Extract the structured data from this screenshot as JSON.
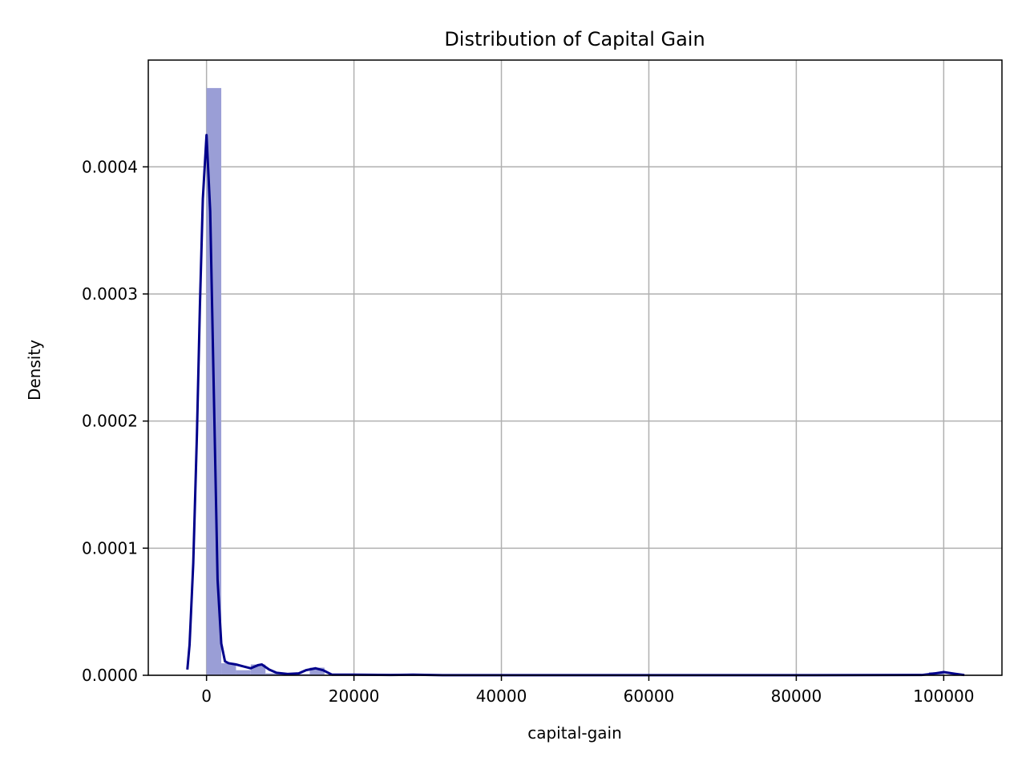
{
  "chart_data": {
    "type": "bar",
    "title": "Distribution of Capital Gain",
    "xlabel": "capital-gain",
    "ylabel": "Density",
    "xlim": [
      -7900,
      107900
    ],
    "ylim": [
      0,
      0.000484
    ],
    "x_ticks": [
      0,
      20000,
      40000,
      60000,
      80000,
      100000
    ],
    "x_tick_labels": [
      "0",
      "20000",
      "40000",
      "60000",
      "80000",
      "100000"
    ],
    "y_ticks": [
      0,
      0.0001,
      0.0002,
      0.0003,
      0.0004
    ],
    "y_tick_labels": [
      "0.0000",
      "0.0001",
      "0.0002",
      "0.0003",
      "0.0004"
    ],
    "grid": true,
    "histogram": {
      "color": "#9a9ed6",
      "bin_width": 2000,
      "bins": [
        {
          "start": 0,
          "end": 2000,
          "density": 0.000462
        },
        {
          "start": 2000,
          "end": 4000,
          "density": 9.5e-06
        },
        {
          "start": 4000,
          "end": 6000,
          "density": 4e-06
        },
        {
          "start": 6000,
          "end": 8000,
          "density": 8.5e-06
        },
        {
          "start": 8000,
          "end": 10000,
          "density": 1.5e-06
        },
        {
          "start": 10000,
          "end": 12000,
          "density": 5e-07
        },
        {
          "start": 12000,
          "end": 14000,
          "density": 1e-06
        },
        {
          "start": 14000,
          "end": 16000,
          "density": 6e-06
        },
        {
          "start": 16000,
          "end": 18000,
          "density": 5e-07
        },
        {
          "start": 20000,
          "end": 22000,
          "density": 5e-07
        },
        {
          "start": 26000,
          "end": 28000,
          "density": 5e-07
        },
        {
          "start": 98000,
          "end": 100000,
          "density": 2.5e-06
        }
      ]
    },
    "kde": {
      "color": "#00008b",
      "points": [
        [
          -2600,
          4.5e-06
        ],
        [
          -2300,
          2.4e-05
        ],
        [
          -1800,
          8.8e-05
        ],
        [
          -1300,
          0.00019
        ],
        [
          -900,
          0.00029
        ],
        [
          -500,
          0.000375
        ],
        [
          0,
          0.000425
        ],
        [
          500,
          0.000365
        ],
        [
          1000,
          0.00022
        ],
        [
          1500,
          7.5e-05
        ],
        [
          2000,
          2.5e-05
        ],
        [
          2500,
          1.1e-05
        ],
        [
          3000,
          9.5e-06
        ],
        [
          4000,
          8.5e-06
        ],
        [
          5000,
          7e-06
        ],
        [
          6000,
          5.5e-06
        ],
        [
          7000,
          8e-06
        ],
        [
          7500,
          8.5e-06
        ],
        [
          8500,
          4.5e-06
        ],
        [
          9500,
          2e-06
        ],
        [
          11000,
          1e-06
        ],
        [
          12500,
          1.5e-06
        ],
        [
          13500,
          4e-06
        ],
        [
          14800,
          5.5e-06
        ],
        [
          15800,
          4e-06
        ],
        [
          17000,
          5e-07
        ],
        [
          20000,
          5e-07
        ],
        [
          25000,
          2e-07
        ],
        [
          28000,
          5e-07
        ],
        [
          32000,
          1e-07
        ],
        [
          50000,
          1e-07
        ],
        [
          80000,
          1e-07
        ],
        [
          97000,
          2e-07
        ],
        [
          98500,
          1.2e-06
        ],
        [
          100000,
          2.5e-06
        ],
        [
          101500,
          1.2e-06
        ],
        [
          102800,
          2e-07
        ]
      ]
    }
  }
}
